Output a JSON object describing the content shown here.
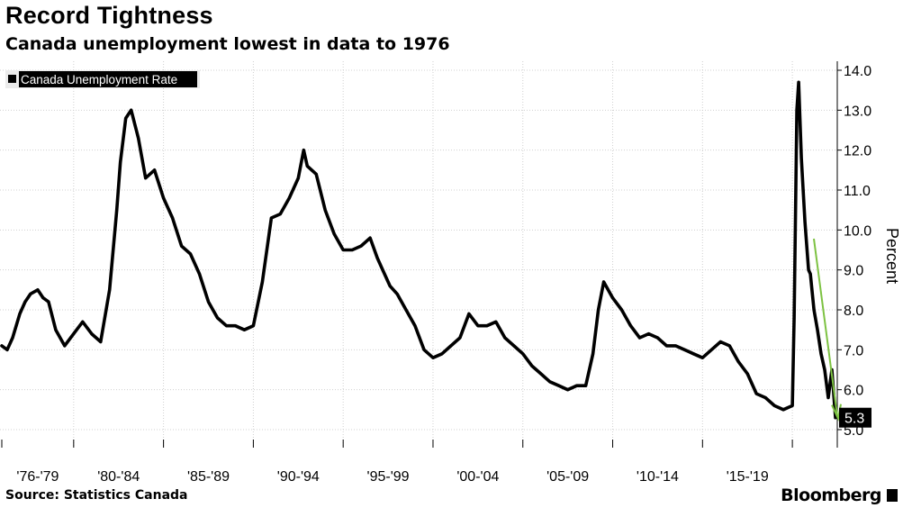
{
  "header": {
    "title": "Record Tightness",
    "subtitle": "Canada unemployment lowest in data to 1976"
  },
  "footer": {
    "source": "Source: Statistics Canada",
    "brand": "Bloomberg"
  },
  "colors": {
    "line": "#000000",
    "grid": "#d0d0d0",
    "arrow": "#7dc242",
    "background": "#ffffff"
  },
  "chart_data": {
    "type": "line",
    "title": "Record Tightness",
    "subtitle": "Canada unemployment lowest in data to 1976",
    "ylabel": "Percent",
    "ylim": [
      5.0,
      14.0
    ],
    "xlim": [
      1976.0,
      2022.0
    ],
    "y_ticks": [
      "14.0",
      "13.0",
      "12.0",
      "11.0",
      "10.0",
      "9.0",
      "8.0",
      "7.0",
      "6.0",
      "5.0"
    ],
    "x_tick_labels": [
      "'76-'79",
      "'80-'84",
      "'85-'89",
      "'90-'94",
      "'95-'99",
      "'00-'04",
      "'05-'09",
      "'10-'14",
      "'15-'19"
    ],
    "x_tick_positions": [
      1976,
      1980,
      1985,
      1990,
      1995,
      2000,
      2005,
      2010,
      2015,
      2020
    ],
    "grid": "horizontal dotted",
    "y_axis_side": "right",
    "legend_position": "top-left",
    "last_value_label": "5.3",
    "series": [
      {
        "name": "Canada Unemployment Rate",
        "x": [
          1976.0,
          1976.3,
          1976.6,
          1977.0,
          1977.3,
          1977.6,
          1978.0,
          1978.3,
          1978.6,
          1979.0,
          1979.5,
          1980.0,
          1980.5,
          1981.0,
          1981.5,
          1982.0,
          1982.4,
          1982.6,
          1982.9,
          1983.2,
          1983.6,
          1984.0,
          1984.5,
          1985.0,
          1985.5,
          1986.0,
          1986.5,
          1987.0,
          1987.5,
          1988.0,
          1988.5,
          1989.0,
          1989.5,
          1990.0,
          1990.5,
          1991.0,
          1991.5,
          1992.0,
          1992.5,
          1992.8,
          1993.0,
          1993.5,
          1994.0,
          1994.5,
          1995.0,
          1995.5,
          1996.0,
          1996.5,
          1996.9,
          1997.2,
          1997.6,
          1998.0,
          1998.5,
          1999.0,
          1999.5,
          2000.0,
          2000.5,
          2001.0,
          2001.5,
          2002.0,
          2002.5,
          2003.0,
          2003.5,
          2004.0,
          2004.5,
          2005.0,
          2005.5,
          2006.0,
          2006.5,
          2007.0,
          2007.5,
          2008.0,
          2008.5,
          2008.9,
          2009.2,
          2009.5,
          2010.0,
          2010.5,
          2011.0,
          2011.5,
          2012.0,
          2012.5,
          2013.0,
          2013.5,
          2014.0,
          2014.5,
          2015.0,
          2015.5,
          2016.0,
          2016.5,
          2017.0,
          2017.5,
          2018.0,
          2018.5,
          2019.0,
          2019.5,
          2020.0,
          2020.1,
          2020.25,
          2020.35,
          2020.5,
          2020.7,
          2020.9,
          2021.0,
          2021.2,
          2021.4,
          2021.6,
          2021.8,
          2022.0,
          2022.2,
          2022.4
        ],
        "values": [
          7.1,
          7.0,
          7.3,
          7.9,
          8.2,
          8.4,
          8.5,
          8.3,
          8.2,
          7.5,
          7.1,
          7.4,
          7.7,
          7.4,
          7.2,
          8.5,
          10.5,
          11.7,
          12.8,
          13.0,
          12.3,
          11.3,
          11.5,
          10.8,
          10.3,
          9.6,
          9.4,
          8.9,
          8.2,
          7.8,
          7.6,
          7.6,
          7.5,
          7.6,
          8.7,
          10.3,
          10.4,
          10.8,
          11.3,
          12.0,
          11.6,
          11.4,
          10.5,
          9.9,
          9.5,
          9.5,
          9.6,
          9.8,
          9.3,
          9.0,
          8.6,
          8.4,
          8.0,
          7.6,
          7.0,
          6.8,
          6.9,
          7.1,
          7.3,
          7.9,
          7.6,
          7.6,
          7.7,
          7.3,
          7.1,
          6.9,
          6.6,
          6.4,
          6.2,
          6.1,
          6.0,
          6.1,
          6.1,
          6.9,
          8.0,
          8.7,
          8.3,
          8.0,
          7.6,
          7.3,
          7.4,
          7.3,
          7.1,
          7.1,
          7.0,
          6.9,
          6.8,
          7.0,
          7.2,
          7.1,
          6.7,
          6.4,
          5.9,
          5.8,
          5.6,
          5.5,
          5.6,
          7.8,
          13.0,
          13.7,
          11.8,
          10.2,
          9.0,
          8.9,
          8.0,
          7.5,
          6.9,
          6.5,
          5.8,
          6.5,
          5.3
        ]
      }
    ]
  }
}
